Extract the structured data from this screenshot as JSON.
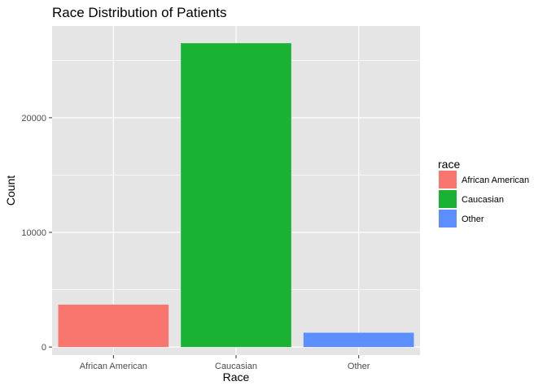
{
  "chart_data": {
    "type": "bar",
    "title": "Race Distribution of Patients",
    "xlabel": "Race",
    "ylabel": "Count",
    "categories": [
      "African American",
      "Caucasian",
      "Other"
    ],
    "values": [
      3700,
      26500,
      1250
    ],
    "colors": [
      "#F8766D",
      "#1AB232",
      "#5B8EFF"
    ],
    "ylim": [
      -700,
      28000
    ],
    "yticks": [
      0,
      10000,
      20000
    ],
    "ytick_labels": [
      "0",
      "10000",
      "20000"
    ],
    "grid": true,
    "panel_background": "#E5E5E5",
    "legend": {
      "title": "race",
      "position": "right",
      "entries": [
        "African American",
        "Caucasian",
        "Other"
      ]
    }
  }
}
